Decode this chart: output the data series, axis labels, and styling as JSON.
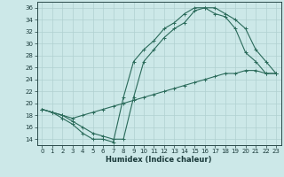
{
  "bg_color": "#cce8e8",
  "grid_color": "#b0d0d0",
  "line_color": "#2a6a5a",
  "xlabel": "Humidex (Indice chaleur)",
  "xlim": [
    -0.5,
    23.5
  ],
  "ylim": [
    13,
    37
  ],
  "xticks": [
    0,
    1,
    2,
    3,
    4,
    5,
    6,
    7,
    8,
    9,
    10,
    11,
    12,
    13,
    14,
    15,
    16,
    17,
    18,
    19,
    20,
    21,
    22,
    23
  ],
  "yticks": [
    14,
    16,
    18,
    20,
    22,
    24,
    26,
    28,
    30,
    32,
    34,
    36
  ],
  "line1_x": [
    0,
    1,
    2,
    3,
    4,
    5,
    6,
    7,
    8,
    9,
    10,
    11,
    12,
    13,
    14,
    15,
    16,
    17,
    18,
    19,
    20,
    21,
    22,
    23
  ],
  "line1_y": [
    19,
    18.5,
    18,
    17,
    16,
    15,
    14.5,
    14,
    14,
    21,
    27,
    29,
    31,
    32.5,
    33.5,
    35.5,
    36,
    36,
    35,
    34,
    32.5,
    29,
    27,
    25
  ],
  "line2_x": [
    0,
    1,
    2,
    3,
    4,
    5,
    6,
    7,
    8,
    9,
    10,
    11,
    12,
    13,
    14,
    15,
    16,
    17,
    18,
    19,
    20,
    21,
    22,
    23
  ],
  "line2_y": [
    19,
    18.5,
    18,
    17.5,
    18,
    18.5,
    19,
    19.5,
    20,
    20.5,
    21,
    21.5,
    22,
    22.5,
    23,
    23.5,
    24,
    24.5,
    25,
    25,
    25.5,
    25.5,
    25,
    25
  ],
  "line3_x": [
    0,
    1,
    2,
    3,
    4,
    5,
    6,
    7,
    8,
    9,
    10,
    11,
    12,
    13,
    14,
    15,
    16,
    17,
    18,
    19,
    20,
    21,
    22,
    23
  ],
  "line3_y": [
    19,
    18.5,
    17.5,
    16.5,
    15,
    14,
    14,
    13.5,
    21,
    27,
    29,
    30.5,
    32.5,
    33.5,
    35,
    36,
    36,
    35,
    34.5,
    32.5,
    28.5,
    27,
    25,
    25
  ]
}
